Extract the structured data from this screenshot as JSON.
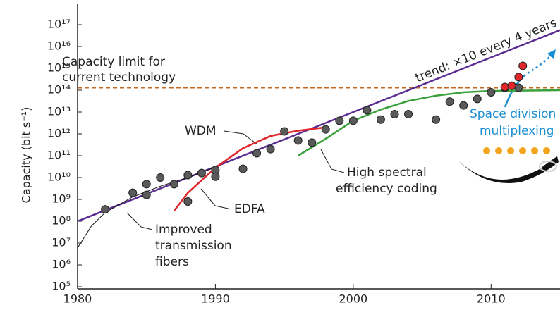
{
  "chart_data": {
    "type": "scatter",
    "y_label": "Capacity (bit s⁻¹)",
    "xlim": [
      1980,
      2015
    ],
    "xticks": [
      1980,
      1990,
      2000,
      2010
    ],
    "ylim": [
      100000,
      1e+17
    ],
    "yscale": "log",
    "yticks": [
      {
        "value": 100000,
        "label": "10⁵"
      },
      {
        "value": 1000000,
        "label": "10⁶"
      },
      {
        "value": 10000000,
        "label": "10⁷"
      },
      {
        "value": 100000000,
        "label": "10⁸"
      },
      {
        "value": 1000000000,
        "label": "10⁹"
      },
      {
        "value": 10000000000,
        "label": "10¹⁰"
      },
      {
        "value": 100000000000,
        "label": "10¹¹"
      },
      {
        "value": 1000000000000,
        "label": "10¹²"
      },
      {
        "value": 10000000000000,
        "label": "10¹³"
      },
      {
        "value": 100000000000000,
        "label": "10¹⁴"
      },
      {
        "value": 1000000000000000.0,
        "label": "10¹⁵"
      },
      {
        "value": 1e+16,
        "label": "10¹⁶"
      },
      {
        "value": 1e+17,
        "label": "10¹⁷"
      }
    ],
    "points": [
      {
        "color": "#5a5a5a",
        "x": [
          1982,
          1984,
          1985,
          1985,
          1986,
          1987,
          1988,
          1988,
          1989,
          1990,
          1990,
          1992,
          1993,
          1994,
          1995,
          1996,
          1997,
          1998,
          1999,
          2000,
          2001,
          2002,
          2003,
          2004,
          2006,
          2007,
          2008,
          2009,
          2010,
          2011,
          2012
        ],
        "values": [
          350000000,
          2000000000,
          5000000000,
          1600000000,
          10000000000,
          5000000000,
          13000000000,
          800000000,
          16000000000,
          22000000000,
          11000000000,
          25000000000,
          130000000000,
          200000000000,
          1300000000000,
          500000000000,
          400000000000,
          1600000000000,
          4000000000000,
          4000000000000,
          12000000000000,
          4500000000000,
          8000000000000,
          8000000000000,
          4500000000000,
          30000000000000,
          20000000000000,
          40000000000000,
          80000000000000,
          130000000000000,
          130000000000000
        ]
      },
      {
        "color": "#e0262b",
        "x": [
          2011,
          2011.5,
          2012,
          2012.3
        ],
        "values": [
          140000000000000,
          160000000000000,
          400000000000000,
          1300000000000000
        ]
      }
    ],
    "lines": [
      {
        "color": "#c8671f",
        "dashed": true,
        "width": 2,
        "x": [
          1980,
          2015
        ],
        "values": [
          130000000000000,
          130000000000000
        ]
      },
      {
        "color": "#5b2d91",
        "dashed": false,
        "width": 2.5,
        "x": [
          1980,
          2015
        ],
        "values": [
          100000000,
          56000000000000000
        ]
      },
      {
        "color": "#111111",
        "dashed": false,
        "width": 1,
        "x": [
          1980,
          1981,
          1982,
          1984,
          1986,
          1988,
          1990
        ],
        "values": [
          6000000,
          60000000,
          250000000,
          1300000000,
          4000000000,
          10000000000,
          30000000000
        ]
      },
      {
        "color": "#e0262b",
        "dashed": false,
        "width": 2.5,
        "x": [
          1987,
          1988,
          1990,
          1992,
          1994,
          1996,
          1998
        ],
        "values": [
          300000000,
          2000000000,
          28000000000,
          220000000000,
          800000000000,
          1400000000000,
          2000000000000
        ]
      },
      {
        "color": "#3aa03a",
        "dashed": false,
        "width": 2.5,
        "x": [
          1996,
          1998,
          2000,
          2002,
          2004,
          2006,
          2008,
          2010,
          2015
        ],
        "values": [
          100000000000,
          600000000000,
          4000000000000,
          13000000000000,
          32000000000000,
          56000000000000,
          80000000000000,
          93000000000000,
          100000000000000
        ]
      }
    ],
    "annotations": [
      "Capacity limit for",
      "current technology",
      "trend: ×10 every 4 years",
      "WDM",
      "EDFA",
      "High spectral",
      "efficiency coding",
      "Improved",
      "transmission",
      "fibers",
      "Space division",
      "multiplexing"
    ]
  }
}
